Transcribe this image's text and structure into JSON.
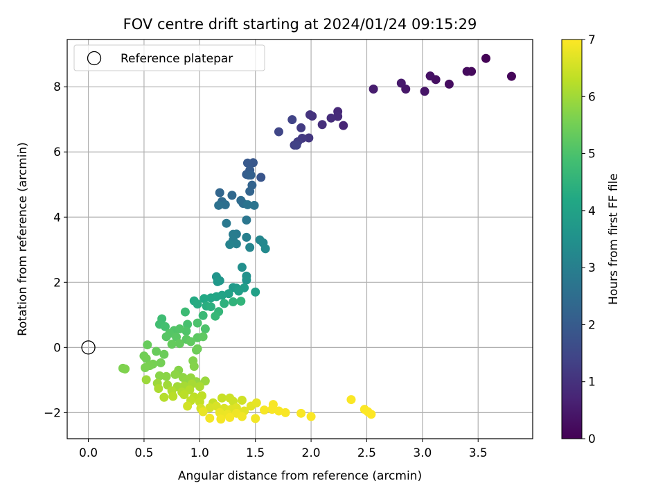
{
  "chart_data": {
    "type": "scatter",
    "title": "FOV centre drift starting at 2024/01/24 09:15:29",
    "xlabel": "Angular distance from reference (arcmin)",
    "ylabel": "Rotation from reference (arcmin)",
    "xlim": [
      -0.19,
      3.99
    ],
    "ylim": [
      -2.8,
      9.45
    ],
    "xticks": [
      0.0,
      0.5,
      1.0,
      1.5,
      2.0,
      2.5,
      3.0,
      3.5
    ],
    "xtick_labels": [
      "0.0",
      "0.5",
      "1.0",
      "1.5",
      "2.0",
      "2.5",
      "3.0",
      "3.5"
    ],
    "yticks": [
      -2,
      0,
      2,
      4,
      6,
      8
    ],
    "ytick_labels": [
      "−2",
      "0",
      "2",
      "4",
      "6",
      "8"
    ],
    "grid": true,
    "legend": {
      "position": "top-left",
      "entries": [
        "Reference platepar"
      ]
    },
    "colorbar": {
      "label": "Hours from first FF file",
      "range": [
        0,
        7
      ],
      "ticks": [
        0,
        1,
        2,
        3,
        4,
        5,
        6,
        7
      ],
      "tick_labels": [
        "0",
        "1",
        "2",
        "3",
        "4",
        "5",
        "6",
        "7"
      ],
      "colormap": "viridis"
    },
    "reference_point": {
      "x": 0.0,
      "y": 0.0
    },
    "points": [
      {
        "x": 3.57,
        "y": 8.87,
        "h": 0.05
      },
      {
        "x": 3.8,
        "y": 8.32,
        "h": 0.1
      },
      {
        "x": 3.44,
        "y": 8.47,
        "h": 0.15
      },
      {
        "x": 3.4,
        "y": 8.47,
        "h": 0.2
      },
      {
        "x": 3.24,
        "y": 8.08,
        "h": 0.25
      },
      {
        "x": 3.12,
        "y": 8.22,
        "h": 0.3
      },
      {
        "x": 3.07,
        "y": 8.33,
        "h": 0.35
      },
      {
        "x": 3.02,
        "y": 7.86,
        "h": 0.4
      },
      {
        "x": 2.85,
        "y": 7.93,
        "h": 0.45
      },
      {
        "x": 2.81,
        "y": 8.11,
        "h": 0.5
      },
      {
        "x": 2.56,
        "y": 7.93,
        "h": 0.55
      },
      {
        "x": 2.29,
        "y": 6.81,
        "h": 0.75
      },
      {
        "x": 2.24,
        "y": 7.24,
        "h": 0.8
      },
      {
        "x": 2.24,
        "y": 7.09,
        "h": 0.85
      },
      {
        "x": 2.18,
        "y": 7.04,
        "h": 0.9
      },
      {
        "x": 2.1,
        "y": 6.84,
        "h": 0.95
      },
      {
        "x": 2.01,
        "y": 7.1,
        "h": 1.0
      },
      {
        "x": 1.99,
        "y": 7.14,
        "h": 1.05
      },
      {
        "x": 1.98,
        "y": 6.43,
        "h": 1.1
      },
      {
        "x": 1.92,
        "y": 6.42,
        "h": 1.15
      },
      {
        "x": 1.91,
        "y": 6.74,
        "h": 1.2
      },
      {
        "x": 1.88,
        "y": 6.31,
        "h": 1.25
      },
      {
        "x": 1.85,
        "y": 6.21,
        "h": 1.3
      },
      {
        "x": 1.87,
        "y": 6.21,
        "h": 1.35
      },
      {
        "x": 1.83,
        "y": 6.99,
        "h": 1.4
      },
      {
        "x": 1.71,
        "y": 6.62,
        "h": 1.45
      },
      {
        "x": 1.55,
        "y": 5.22,
        "h": 1.85
      },
      {
        "x": 1.48,
        "y": 5.67,
        "h": 1.9
      },
      {
        "x": 1.43,
        "y": 5.66,
        "h": 1.95
      },
      {
        "x": 1.45,
        "y": 5.44,
        "h": 2.0
      },
      {
        "x": 1.42,
        "y": 5.31,
        "h": 2.05
      },
      {
        "x": 1.44,
        "y": 5.29,
        "h": 2.1
      },
      {
        "x": 1.46,
        "y": 5.29,
        "h": 2.15
      },
      {
        "x": 1.47,
        "y": 4.98,
        "h": 2.2
      },
      {
        "x": 1.45,
        "y": 4.79,
        "h": 2.25
      },
      {
        "x": 1.18,
        "y": 4.75,
        "h": 2.3
      },
      {
        "x": 1.29,
        "y": 4.67,
        "h": 2.35
      },
      {
        "x": 1.2,
        "y": 4.48,
        "h": 2.4
      },
      {
        "x": 1.37,
        "y": 4.51,
        "h": 2.45
      },
      {
        "x": 1.39,
        "y": 4.42,
        "h": 2.5
      },
      {
        "x": 1.23,
        "y": 4.38,
        "h": 2.55
      },
      {
        "x": 1.17,
        "y": 4.36,
        "h": 2.6
      },
      {
        "x": 1.43,
        "y": 4.38,
        "h": 2.65
      },
      {
        "x": 1.49,
        "y": 4.36,
        "h": 2.7
      },
      {
        "x": 1.42,
        "y": 3.91,
        "h": 2.75
      },
      {
        "x": 1.24,
        "y": 3.81,
        "h": 2.8
      },
      {
        "x": 1.33,
        "y": 3.48,
        "h": 2.85
      },
      {
        "x": 1.3,
        "y": 3.47,
        "h": 2.9
      },
      {
        "x": 1.3,
        "y": 3.29,
        "h": 2.95
      },
      {
        "x": 1.42,
        "y": 3.38,
        "h": 3.0
      },
      {
        "x": 1.33,
        "y": 3.18,
        "h": 3.05
      },
      {
        "x": 1.27,
        "y": 3.16,
        "h": 3.1
      },
      {
        "x": 1.45,
        "y": 3.07,
        "h": 3.15
      },
      {
        "x": 1.54,
        "y": 3.3,
        "h": 3.2
      },
      {
        "x": 1.57,
        "y": 3.21,
        "h": 3.25
      },
      {
        "x": 1.59,
        "y": 3.03,
        "h": 3.3
      },
      {
        "x": 1.38,
        "y": 2.46,
        "h": 3.45
      },
      {
        "x": 1.42,
        "y": 2.19,
        "h": 3.5
      },
      {
        "x": 1.42,
        "y": 2.07,
        "h": 3.55
      },
      {
        "x": 1.15,
        "y": 2.17,
        "h": 3.6
      },
      {
        "x": 1.18,
        "y": 2.05,
        "h": 3.65
      },
      {
        "x": 1.16,
        "y": 2.02,
        "h": 3.7
      },
      {
        "x": 1.3,
        "y": 1.84,
        "h": 3.75
      },
      {
        "x": 1.33,
        "y": 1.82,
        "h": 3.8
      },
      {
        "x": 1.4,
        "y": 1.83,
        "h": 3.85
      },
      {
        "x": 1.35,
        "y": 1.73,
        "h": 3.9
      },
      {
        "x": 1.5,
        "y": 1.7,
        "h": 3.95
      },
      {
        "x": 1.26,
        "y": 1.65,
        "h": 4.0
      },
      {
        "x": 1.2,
        "y": 1.6,
        "h": 4.05
      },
      {
        "x": 1.15,
        "y": 1.56,
        "h": 4.1
      },
      {
        "x": 1.1,
        "y": 1.52,
        "h": 4.15
      },
      {
        "x": 1.04,
        "y": 1.5,
        "h": 4.2
      },
      {
        "x": 0.95,
        "y": 1.43,
        "h": 4.25
      },
      {
        "x": 0.98,
        "y": 1.33,
        "h": 4.3
      },
      {
        "x": 1.06,
        "y": 1.27,
        "h": 4.35
      },
      {
        "x": 1.1,
        "y": 1.25,
        "h": 4.4
      },
      {
        "x": 1.22,
        "y": 1.35,
        "h": 4.45
      },
      {
        "x": 1.3,
        "y": 1.4,
        "h": 4.5
      },
      {
        "x": 1.37,
        "y": 1.42,
        "h": 4.55
      },
      {
        "x": 1.17,
        "y": 1.1,
        "h": 4.6
      },
      {
        "x": 1.14,
        "y": 0.96,
        "h": 4.65
      },
      {
        "x": 1.03,
        "y": 0.98,
        "h": 4.7
      },
      {
        "x": 0.87,
        "y": 1.09,
        "h": 4.75
      },
      {
        "x": 0.66,
        "y": 0.88,
        "h": 4.8
      },
      {
        "x": 0.64,
        "y": 0.71,
        "h": 4.85
      },
      {
        "x": 0.69,
        "y": 0.64,
        "h": 4.9
      },
      {
        "x": 0.89,
        "y": 0.71,
        "h": 4.95
      },
      {
        "x": 0.98,
        "y": 0.75,
        "h": 5.0
      },
      {
        "x": 1.05,
        "y": 0.57,
        "h": 5.02
      },
      {
        "x": 0.88,
        "y": 0.5,
        "h": 5.05
      },
      {
        "x": 0.77,
        "y": 0.52,
        "h": 5.07
      },
      {
        "x": 0.82,
        "y": 0.57,
        "h": 5.1
      },
      {
        "x": 0.73,
        "y": 0.43,
        "h": 5.12
      },
      {
        "x": 0.7,
        "y": 0.33,
        "h": 5.15
      },
      {
        "x": 0.79,
        "y": 0.32,
        "h": 5.17
      },
      {
        "x": 0.88,
        "y": 0.25,
        "h": 5.2
      },
      {
        "x": 0.98,
        "y": 0.3,
        "h": 5.22
      },
      {
        "x": 1.03,
        "y": 0.33,
        "h": 5.25
      },
      {
        "x": 0.92,
        "y": 0.18,
        "h": 5.27
      },
      {
        "x": 0.82,
        "y": 0.12,
        "h": 5.3
      },
      {
        "x": 0.75,
        "y": 0.1,
        "h": 5.32
      },
      {
        "x": 0.53,
        "y": 0.08,
        "h": 5.35
      },
      {
        "x": 0.61,
        "y": -0.12,
        "h": 5.37
      },
      {
        "x": 0.68,
        "y": -0.21,
        "h": 5.4
      },
      {
        "x": 0.97,
        "y": -0.08,
        "h": 5.42
      },
      {
        "x": 0.98,
        "y": -0.04,
        "h": 5.45
      },
      {
        "x": 0.5,
        "y": -0.26,
        "h": 5.47
      },
      {
        "x": 0.52,
        "y": -0.34,
        "h": 5.5
      },
      {
        "x": 0.65,
        "y": -0.47,
        "h": 5.52
      },
      {
        "x": 0.58,
        "y": -0.51,
        "h": 5.55
      },
      {
        "x": 0.55,
        "y": -0.56,
        "h": 5.57
      },
      {
        "x": 0.51,
        "y": -0.62,
        "h": 5.6
      },
      {
        "x": 0.31,
        "y": -0.64,
        "h": 5.62
      },
      {
        "x": 0.33,
        "y": -0.66,
        "h": 5.65
      },
      {
        "x": 0.94,
        "y": -0.41,
        "h": 5.67
      },
      {
        "x": 0.95,
        "y": -0.58,
        "h": 5.7
      },
      {
        "x": 0.81,
        "y": -0.7,
        "h": 5.72
      },
      {
        "x": 0.64,
        "y": -0.87,
        "h": 5.75
      },
      {
        "x": 0.7,
        "y": -0.89,
        "h": 5.77
      },
      {
        "x": 0.78,
        "y": -0.83,
        "h": 5.8
      },
      {
        "x": 0.85,
        "y": -0.92,
        "h": 5.82
      },
      {
        "x": 0.88,
        "y": -1.0,
        "h": 5.85
      },
      {
        "x": 0.92,
        "y": -0.93,
        "h": 5.87
      },
      {
        "x": 0.97,
        "y": -1.05,
        "h": 5.9
      },
      {
        "x": 1.05,
        "y": -1.03,
        "h": 5.92
      },
      {
        "x": 0.52,
        "y": -0.99,
        "h": 5.95
      },
      {
        "x": 0.62,
        "y": -1.1,
        "h": 5.97
      },
      {
        "x": 0.71,
        "y": -1.15,
        "h": 6.0
      },
      {
        "x": 0.8,
        "y": -1.2,
        "h": 6.02
      },
      {
        "x": 0.86,
        "y": -1.18,
        "h": 6.05
      },
      {
        "x": 0.93,
        "y": -1.12,
        "h": 6.07
      },
      {
        "x": 1.0,
        "y": -1.2,
        "h": 6.1
      },
      {
        "x": 0.63,
        "y": -1.26,
        "h": 6.12
      },
      {
        "x": 0.75,
        "y": -1.33,
        "h": 6.15
      },
      {
        "x": 0.84,
        "y": -1.37,
        "h": 6.17
      },
      {
        "x": 0.91,
        "y": -1.3,
        "h": 6.2
      },
      {
        "x": 0.68,
        "y": -1.53,
        "h": 6.22
      },
      {
        "x": 0.76,
        "y": -1.5,
        "h": 6.25
      },
      {
        "x": 0.86,
        "y": -1.45,
        "h": 6.27
      },
      {
        "x": 0.95,
        "y": -1.52,
        "h": 6.3
      },
      {
        "x": 1.02,
        "y": -1.48,
        "h": 6.32
      },
      {
        "x": 0.92,
        "y": -1.63,
        "h": 6.35
      },
      {
        "x": 1.0,
        "y": -1.67,
        "h": 6.37
      },
      {
        "x": 1.12,
        "y": -1.7,
        "h": 6.4
      },
      {
        "x": 1.2,
        "y": -1.55,
        "h": 6.42
      },
      {
        "x": 1.27,
        "y": -1.55,
        "h": 6.45
      },
      {
        "x": 1.3,
        "y": -1.65,
        "h": 6.47
      },
      {
        "x": 1.38,
        "y": -1.62,
        "h": 6.5
      },
      {
        "x": 0.89,
        "y": -1.8,
        "h": 6.52
      },
      {
        "x": 1.01,
        "y": -1.87,
        "h": 6.55
      },
      {
        "x": 1.09,
        "y": -1.85,
        "h": 6.57
      },
      {
        "x": 1.15,
        "y": -1.8,
        "h": 6.6
      },
      {
        "x": 1.22,
        "y": -1.87,
        "h": 6.62
      },
      {
        "x": 1.28,
        "y": -1.9,
        "h": 6.65
      },
      {
        "x": 1.33,
        "y": -1.85,
        "h": 6.67
      },
      {
        "x": 1.4,
        "y": -1.95,
        "h": 6.7
      },
      {
        "x": 1.46,
        "y": -1.8,
        "h": 6.72
      },
      {
        "x": 1.51,
        "y": -1.7,
        "h": 6.75
      },
      {
        "x": 1.03,
        "y": -1.97,
        "h": 6.77
      },
      {
        "x": 1.18,
        "y": -2.0,
        "h": 6.8
      },
      {
        "x": 1.25,
        "y": -2.05,
        "h": 6.82
      },
      {
        "x": 1.33,
        "y": -2.02,
        "h": 6.85
      },
      {
        "x": 1.38,
        "y": -2.12,
        "h": 6.87
      },
      {
        "x": 1.5,
        "y": -2.18,
        "h": 6.88
      },
      {
        "x": 1.09,
        "y": -2.17,
        "h": 6.9
      },
      {
        "x": 1.19,
        "y": -2.2,
        "h": 6.9
      },
      {
        "x": 1.27,
        "y": -2.15,
        "h": 6.92
      },
      {
        "x": 1.58,
        "y": -1.92,
        "h": 6.92
      },
      {
        "x": 1.66,
        "y": -1.75,
        "h": 6.93
      },
      {
        "x": 1.65,
        "y": -1.9,
        "h": 6.94
      },
      {
        "x": 1.71,
        "y": -1.95,
        "h": 6.95
      },
      {
        "x": 1.77,
        "y": -2.0,
        "h": 6.95
      },
      {
        "x": 1.91,
        "y": -2.02,
        "h": 6.96
      },
      {
        "x": 2.0,
        "y": -2.12,
        "h": 6.97
      },
      {
        "x": 2.36,
        "y": -1.6,
        "h": 6.97
      },
      {
        "x": 2.48,
        "y": -1.9,
        "h": 6.98
      },
      {
        "x": 2.51,
        "y": -1.97,
        "h": 6.99
      },
      {
        "x": 2.54,
        "y": -2.05,
        "h": 7.0
      }
    ]
  }
}
